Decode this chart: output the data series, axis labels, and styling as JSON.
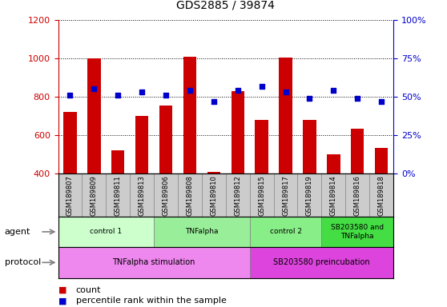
{
  "title": "GDS2885 / 39874",
  "samples": [
    "GSM189807",
    "GSM189809",
    "GSM189811",
    "GSM189813",
    "GSM189806",
    "GSM189808",
    "GSM189810",
    "GSM189812",
    "GSM189815",
    "GSM189817",
    "GSM189819",
    "GSM189814",
    "GSM189816",
    "GSM189818"
  ],
  "counts": [
    720,
    1000,
    520,
    700,
    755,
    1010,
    410,
    830,
    680,
    1005,
    680,
    500,
    635,
    535
  ],
  "percentiles": [
    51,
    55,
    51,
    53,
    51,
    54,
    47,
    54,
    57,
    53,
    49,
    54,
    49,
    47
  ],
  "ylim_left": [
    400,
    1200
  ],
  "ylim_right": [
    0,
    100
  ],
  "yticks_left": [
    400,
    600,
    800,
    1000,
    1200
  ],
  "yticks_right": [
    0,
    25,
    50,
    75,
    100
  ],
  "bar_color": "#cc0000",
  "dot_color": "#0000cc",
  "agent_groups": [
    {
      "label": "control 1",
      "start": 0,
      "end": 4,
      "color": "#ccffcc"
    },
    {
      "label": "TNFalpha",
      "start": 4,
      "end": 8,
      "color": "#99ee99"
    },
    {
      "label": "control 2",
      "start": 8,
      "end": 11,
      "color": "#88ee88"
    },
    {
      "label": "SB203580 and\nTNFalpha",
      "start": 11,
      "end": 14,
      "color": "#44dd44"
    }
  ],
  "protocol_groups": [
    {
      "label": "TNFalpha stimulation",
      "start": 0,
      "end": 8,
      "color": "#ee88ee"
    },
    {
      "label": "SB203580 preincubation",
      "start": 8,
      "end": 14,
      "color": "#dd44dd"
    }
  ],
  "agent_label": "agent",
  "protocol_label": "protocol",
  "legend_count_label": "count",
  "legend_pct_label": "percentile rank within the sample",
  "tick_label_color_left": "#cc0000",
  "tick_label_color_right": "#0000cc",
  "background_color": "#ffffff",
  "xticklabel_bg": "#cccccc"
}
